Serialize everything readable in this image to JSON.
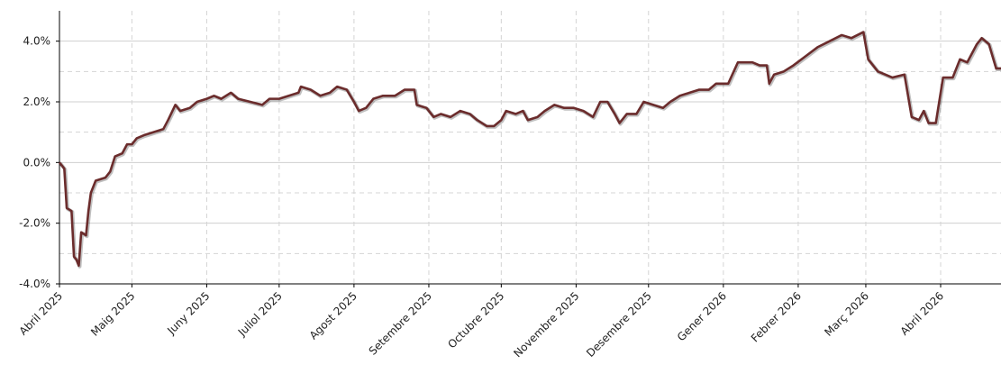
{
  "chart_data": {
    "type": "line",
    "x": [
      0,
      2,
      3,
      5,
      6,
      7,
      8,
      9,
      11,
      12,
      13,
      15,
      19,
      21,
      23,
      26,
      28,
      30,
      32,
      35,
      39,
      43,
      45,
      48,
      50,
      54,
      57,
      61,
      64,
      67,
      71,
      74,
      79,
      84,
      87,
      91,
      95,
      99,
      100,
      104,
      108,
      112,
      115,
      119,
      122,
      124,
      127,
      130,
      134,
      139,
      143,
      147,
      148,
      152,
      155,
      158,
      162,
      166,
      170,
      173,
      177,
      180,
      183,
      185,
      189,
      192,
      194,
      198,
      201,
      205,
      209,
      213,
      217,
      221,
      224,
      227,
      230,
      232,
      235,
      239,
      242,
      246,
      250,
      253,
      257,
      261,
      265,
      269,
      272,
      277,
      281,
      287,
      290,
      293,
      294,
      296,
      300,
      304,
      309,
      314,
      319,
      324,
      328,
      333,
      335,
      339,
      345,
      350,
      353,
      356,
      358,
      360,
      363,
      366,
      370,
      373,
      376,
      380,
      382,
      385,
      388,
      390
    ],
    "series": [
      {
        "color": "#6b2c2c",
        "values": [
          0,
          -0.2,
          -1.5,
          -1.6,
          -3.1,
          -3.2,
          -3.4,
          -2.3,
          -2.4,
          -1.6,
          -1.0,
          -0.6,
          -0.5,
          -0.3,
          0.2,
          0.3,
          0.6,
          0.6,
          0.8,
          0.9,
          1.0,
          1.1,
          1.4,
          1.9,
          1.7,
          1.8,
          2.0,
          2.1,
          2.2,
          2.1,
          2.3,
          2.1,
          2.0,
          1.9,
          2.1,
          2.1,
          2.2,
          2.3,
          2.5,
          2.4,
          2.2,
          2.3,
          2.5,
          2.4,
          2.0,
          1.7,
          1.8,
          2.1,
          2.2,
          2.2,
          2.4,
          2.4,
          1.9,
          1.8,
          1.5,
          1.6,
          1.5,
          1.7,
          1.6,
          1.4,
          1.2,
          1.2,
          1.4,
          1.7,
          1.6,
          1.7,
          1.4,
          1.5,
          1.7,
          1.9,
          1.8,
          1.8,
          1.7,
          1.5,
          2.0,
          2.0,
          1.6,
          1.3,
          1.6,
          1.6,
          2.0,
          1.9,
          1.8,
          2.0,
          2.2,
          2.3,
          2.4,
          2.4,
          2.6,
          2.6,
          3.3,
          3.3,
          3.2,
          3.2,
          2.6,
          2.9,
          3.0,
          3.2,
          3.5,
          3.8,
          4.0,
          4.2,
          4.1,
          4.3,
          3.4,
          3.0,
          2.8,
          2.9,
          1.5,
          1.4,
          1.7,
          1.3,
          1.3,
          2.8,
          2.8,
          3.4,
          3.3,
          3.9,
          4.1,
          3.9,
          3.1,
          3.1
        ]
      }
    ],
    "xlim": [
      0,
      390
    ],
    "xticks": [
      {
        "value": 0,
        "label": "Abril 2025"
      },
      {
        "value": 30,
        "label": "Maig 2025"
      },
      {
        "value": 61,
        "label": "Juny 2025"
      },
      {
        "value": 91,
        "label": "Juliol 2025"
      },
      {
        "value": 122,
        "label": "Agost 2025"
      },
      {
        "value": 153,
        "label": "Setembre 2025"
      },
      {
        "value": 183,
        "label": "Octubre 2025"
      },
      {
        "value": 214,
        "label": "Novembre 2025"
      },
      {
        "value": 244,
        "label": "Desembre 2025"
      },
      {
        "value": 275,
        "label": "Gener 2026"
      },
      {
        "value": 306,
        "label": "Febrer 2026"
      },
      {
        "value": 334,
        "label": "Març 2026"
      },
      {
        "value": 365,
        "label": "Abril 2026"
      }
    ],
    "ylim": [
      -4,
      5
    ],
    "yticks": [
      {
        "value": -4,
        "label": "-4.0%"
      },
      {
        "value": -2,
        "label": "-2.0%"
      },
      {
        "value": 0,
        "label": "0.0%"
      },
      {
        "value": 2,
        "label": "2.0%"
      },
      {
        "value": 4,
        "label": "4.0%"
      }
    ],
    "minor_yticks": [
      -3,
      -1,
      1,
      3
    ],
    "grid": true
  }
}
